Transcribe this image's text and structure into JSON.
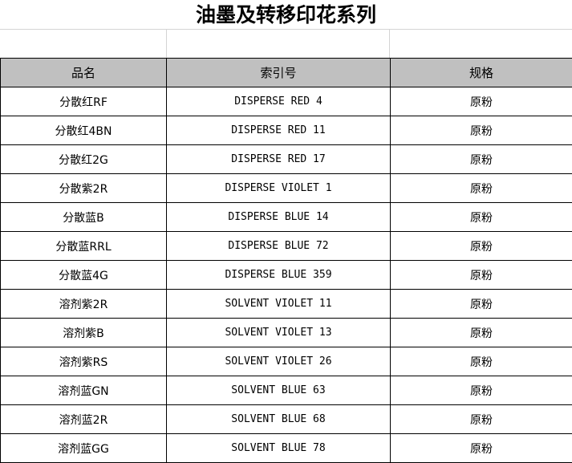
{
  "title": "油墨及转移印花系列",
  "headers": [
    "品名",
    "索引号",
    "规格"
  ],
  "colors": {
    "header_bg": "#c0c0c0"
  },
  "rows": [
    [
      "分散红RF",
      "DISPERSE RED 4",
      "原粉"
    ],
    [
      "分散红4BN",
      "DISPERSE RED 11",
      "原粉"
    ],
    [
      "分散红2G",
      "DISPERSE RED 17",
      "原粉"
    ],
    [
      "分散紫2R",
      "DISPERSE VIOLET 1",
      "原粉"
    ],
    [
      "分散蓝B",
      "DISPERSE BLUE 14",
      "原粉"
    ],
    [
      "分散蓝RRL",
      "DISPERSE BLUE 72",
      "原粉"
    ],
    [
      "分散蓝4G",
      "DISPERSE BLUE 359",
      "原粉"
    ],
    [
      "溶剂紫2R",
      "SOLVENT VIOLET 11",
      "原粉"
    ],
    [
      "溶剂紫B",
      "SOLVENT VIOLET 13",
      "原粉"
    ],
    [
      "溶剂紫RS",
      "SOLVENT VIOLET 26",
      "原粉"
    ],
    [
      "溶剂蓝GN",
      "SOLVENT BLUE 63",
      "原粉"
    ],
    [
      "溶剂蓝2R",
      "SOLVENT BLUE 68",
      "原粉"
    ],
    [
      "溶剂蓝GG",
      "SOLVENT BLUE 78",
      "原粉"
    ]
  ]
}
